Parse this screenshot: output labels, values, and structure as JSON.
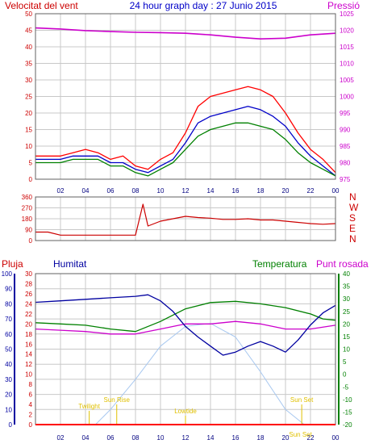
{
  "chart_data": [
    {
      "type": "line",
      "title": "24 hour graph day : 27 Junio 2015",
      "ylabel_left": "Velocitat del vent",
      "ylabel_right": "Pressió",
      "x_ticks": [
        "02",
        "04",
        "06",
        "08",
        "10",
        "12",
        "14",
        "16",
        "18",
        "20",
        "22",
        "00"
      ],
      "ylim_left": [
        0,
        50
      ],
      "yticks_left": [
        0,
        5,
        10,
        15,
        20,
        25,
        30,
        35,
        40,
        45,
        50
      ],
      "ylim_right": [
        975,
        1025
      ],
      "yticks_right": [
        975,
        980,
        985,
        990,
        995,
        1000,
        1005,
        1010,
        1015,
        1020,
        1025
      ],
      "grid": true,
      "series": [
        {
          "role": "gust",
          "color": "#ff0000",
          "axis": "left",
          "x": [
            0,
            1,
            2,
            3,
            4,
            5,
            6,
            7,
            8,
            9,
            10,
            11,
            12,
            13,
            14,
            15,
            16,
            17,
            18,
            19,
            20,
            21,
            22,
            23,
            24
          ],
          "y": [
            7,
            7,
            7,
            8,
            9,
            8,
            6,
            7,
            4,
            3,
            6,
            8,
            14,
            22,
            25,
            26,
            27,
            28,
            27,
            25,
            20,
            14,
            9,
            6,
            2
          ]
        },
        {
          "role": "average",
          "color": "#0000c8",
          "axis": "left",
          "x": [
            0,
            1,
            2,
            3,
            4,
            5,
            6,
            7,
            8,
            9,
            10,
            11,
            12,
            13,
            14,
            15,
            16,
            17,
            18,
            19,
            20,
            21,
            22,
            23,
            24
          ],
          "y": [
            6,
            6,
            6,
            7,
            7,
            7,
            5,
            5,
            3,
            2,
            4,
            6,
            11,
            17,
            19,
            20,
            21,
            22,
            21,
            19,
            16,
            11,
            7,
            4,
            1
          ]
        },
        {
          "role": "speed",
          "color": "#008000",
          "axis": "left",
          "x": [
            0,
            1,
            2,
            3,
            4,
            5,
            6,
            7,
            8,
            9,
            10,
            11,
            12,
            13,
            14,
            15,
            16,
            17,
            18,
            19,
            20,
            21,
            22,
            23,
            24
          ],
          "y": [
            5,
            5,
            5,
            6,
            6,
            6,
            4,
            4,
            2,
            1,
            3,
            5,
            9,
            13,
            15,
            16,
            17,
            17,
            16,
            15,
            12,
            8,
            5,
            3,
            1
          ]
        },
        {
          "role": "pressure",
          "color": "#cc00cc",
          "axis": "right",
          "x": [
            0,
            2,
            4,
            6,
            8,
            10,
            12,
            14,
            16,
            18,
            20,
            22,
            24
          ],
          "y": [
            1020.7,
            1020.4,
            1019.9,
            1019.6,
            1019.4,
            1019.3,
            1019.1,
            1018.6,
            1017.9,
            1017.4,
            1017.6,
            1018.6,
            1019.1
          ]
        }
      ]
    },
    {
      "type": "line",
      "ylabel_right": [
        "N",
        "W",
        "S",
        "E",
        "N"
      ],
      "x_ticks": [
        "02",
        "04",
        "06",
        "08",
        "10",
        "12",
        "14",
        "16",
        "18",
        "20",
        "22",
        "00"
      ],
      "ylim": [
        0,
        360
      ],
      "yticks": [
        0,
        90,
        180,
        270,
        360
      ],
      "grid": true,
      "series": [
        {
          "role": "wind-direction",
          "color": "#cc0000",
          "x": [
            0,
            1,
            2,
            3,
            4,
            5,
            6,
            7,
            8,
            8.6,
            9,
            10,
            11,
            12,
            13,
            14,
            15,
            16,
            17,
            18,
            19,
            20,
            21,
            22,
            23,
            24
          ],
          "y": [
            70,
            70,
            45,
            45,
            45,
            45,
            45,
            45,
            45,
            300,
            120,
            160,
            180,
            200,
            190,
            185,
            175,
            175,
            180,
            170,
            170,
            160,
            150,
            140,
            135,
            140
          ]
        }
      ]
    },
    {
      "type": "line",
      "labels": {
        "rain": "Pluja",
        "humidity": "Humitat",
        "temperature": "Temperatura",
        "dewpoint": "Punt rosada"
      },
      "x_ticks": [
        "02",
        "04",
        "06",
        "08",
        "10",
        "12",
        "14",
        "16",
        "18",
        "20",
        "22",
        "00"
      ],
      "ylim_humidity": [
        0,
        100
      ],
      "yticks_humidity": [
        0,
        10,
        20,
        30,
        40,
        50,
        60,
        70,
        80,
        90,
        100
      ],
      "ylim_rain": [
        0,
        30
      ],
      "yticks_rain": [
        0,
        2,
        4,
        6,
        8,
        10,
        12,
        14,
        16,
        18,
        20,
        22,
        24,
        26,
        28,
        30
      ],
      "ylim_temperature": [
        -20,
        40
      ],
      "yticks_temperature": [
        -20,
        -15,
        -10,
        -5,
        0,
        5,
        10,
        15,
        20,
        25,
        30,
        35,
        40
      ],
      "grid": true,
      "annotations": [
        "Sun Rise",
        "Sun Set",
        "Twilight",
        "Lowtide",
        "Sun Set"
      ],
      "series": [
        {
          "role": "humidity",
          "color": "#0000a0",
          "axis": "humidity",
          "x": [
            0,
            2,
            4,
            6,
            8,
            9,
            10,
            11,
            12,
            13,
            14,
            15,
            16,
            17,
            18,
            19,
            20,
            21,
            22,
            23,
            24
          ],
          "y": [
            81,
            82,
            83,
            84,
            85,
            86,
            82,
            75,
            65,
            58,
            52,
            46,
            48,
            52,
            55,
            52,
            48,
            56,
            66,
            74,
            79
          ]
        },
        {
          "role": "temperature",
          "color": "#008000",
          "axis": "temperature",
          "x": [
            0,
            2,
            4,
            6,
            8,
            10,
            12,
            14,
            16,
            18,
            20,
            22,
            23,
            24
          ],
          "y": [
            20.5,
            20,
            19.5,
            18,
            17,
            21,
            26,
            28.5,
            29,
            28,
            26.5,
            24,
            22,
            21.5
          ]
        },
        {
          "role": "dewpoint",
          "color": "#cc00cc",
          "axis": "temperature",
          "x": [
            0,
            2,
            4,
            6,
            8,
            10,
            12,
            14,
            16,
            18,
            20,
            22,
            24
          ],
          "y": [
            18,
            17.5,
            17,
            16,
            16,
            18,
            20,
            20,
            21,
            20,
            18,
            18,
            19.5
          ]
        },
        {
          "role": "solar",
          "color": "#a8c8f0",
          "axis": "humidity",
          "x": [
            4.8,
            6,
            8,
            10,
            12,
            14,
            16,
            18,
            20,
            21.5
          ],
          "y": [
            0,
            10,
            30,
            52,
            65,
            67,
            58,
            35,
            10,
            0
          ]
        },
        {
          "role": "rain",
          "color": "#ff0000",
          "axis": "rain",
          "x": [
            0,
            24
          ],
          "y": [
            0,
            0
          ]
        }
      ]
    }
  ]
}
